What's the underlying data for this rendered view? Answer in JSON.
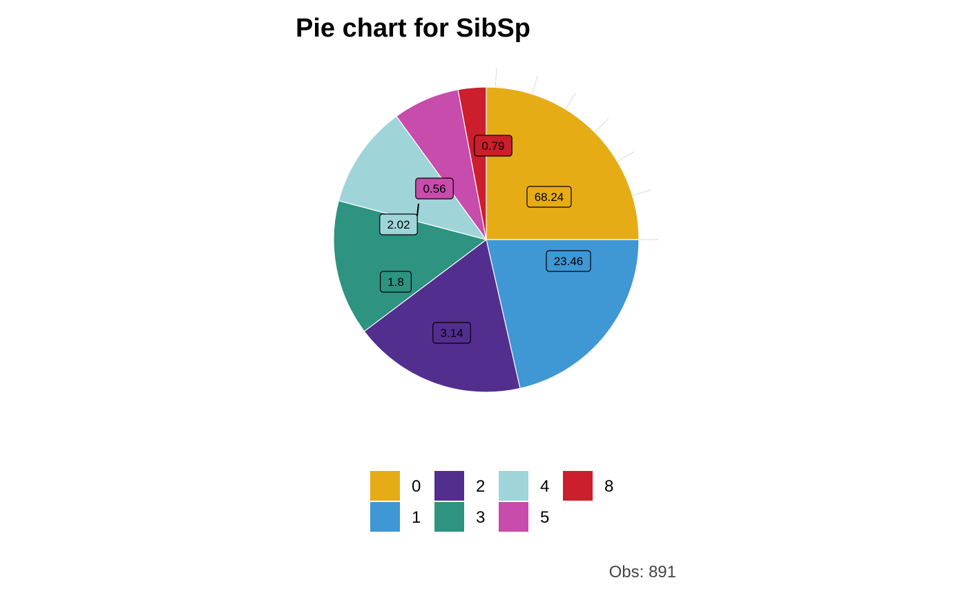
{
  "chart_data": {
    "type": "pie",
    "title": "Pie chart for SibSp",
    "legend_position": "bottom",
    "legend_title": "",
    "caption": "Obs: 891",
    "slices": [
      {
        "category": "0",
        "value": 68.24,
        "label": "68.24",
        "color": "#E6AC16"
      },
      {
        "category": "1",
        "value": 23.46,
        "label": "23.46",
        "color": "#3F97D4"
      },
      {
        "category": "2",
        "value": 3.14,
        "label": "3.14",
        "color": "#522E8E"
      },
      {
        "category": "3",
        "value": 1.8,
        "label": "1.8",
        "color": "#2E9381"
      },
      {
        "category": "4",
        "value": 2.02,
        "label": "2.02",
        "color": "#9FD5D8"
      },
      {
        "category": "5",
        "value": 0.56,
        "label": "0.56",
        "color": "#C74CAB"
      },
      {
        "category": "8",
        "value": 0.79,
        "label": "0.79",
        "color": "#CC1E2C"
      }
    ]
  }
}
